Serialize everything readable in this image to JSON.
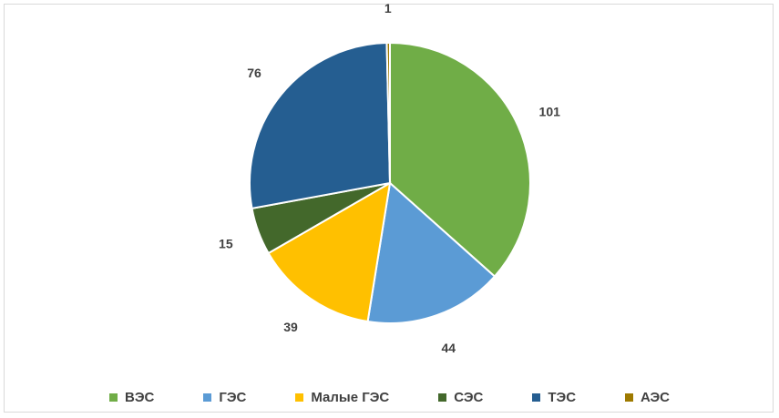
{
  "chart_data": {
    "type": "pie",
    "categories": [
      "ВЭС",
      "ГЭС",
      "Малые ГЭС",
      "СЭС",
      "ТЭС",
      "АЭС"
    ],
    "values": [
      101,
      44,
      39,
      15,
      76,
      1
    ],
    "colors": [
      "#70ad47",
      "#5b9bd5",
      "#ffc000",
      "#43682b",
      "#255e91",
      "#9e7a00"
    ],
    "data_labels": [
      "101",
      "44",
      "39",
      "15",
      "76",
      "1"
    ],
    "start_angle_deg": 0,
    "direction": "clockwise",
    "legend_position": "bottom"
  }
}
